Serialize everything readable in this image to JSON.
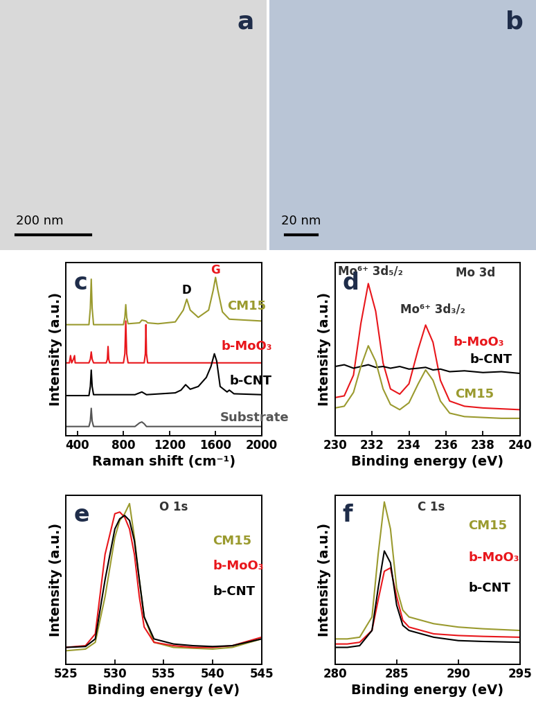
{
  "chart_data": [
    {
      "type": "image",
      "panel": "a",
      "scale_bar": "200 nm",
      "color": "#d9d9d9"
    },
    {
      "type": "image",
      "panel": "b",
      "scale_bar": "20 nm",
      "color": "#b9c5d6"
    },
    {
      "type": "line",
      "panel": "c",
      "x_label": "Raman shift (cm⁻¹)",
      "y_label": "Intensity (a.u.)",
      "xlim": [
        300,
        2000
      ],
      "xticks": [
        400,
        800,
        1200,
        1600,
        2000
      ],
      "ylim": [
        0.5,
        10
      ],
      "yticks": [],
      "tick_labels": "x",
      "series": [
        {
          "name": "CM15",
          "color": "#9a9a2e",
          "label_at": [
            1700,
            7.6
          ],
          "x": [
            300,
            500,
            512,
            520,
            528,
            540,
            800,
            812,
            820,
            828,
            840,
            940,
            960,
            995,
            1010,
            1100,
            1250,
            1320,
            1350,
            1380,
            1450,
            1540,
            1580,
            1600,
            1620,
            1660,
            1720,
            2000
          ],
          "values": [
            6.6,
            6.6,
            7.5,
            9.1,
            7.5,
            6.6,
            6.6,
            7.0,
            7.7,
            7.0,
            6.65,
            6.7,
            6.85,
            6.8,
            6.7,
            6.65,
            6.75,
            7.4,
            8.0,
            7.4,
            7.0,
            7.4,
            8.5,
            9.2,
            8.5,
            7.3,
            6.9,
            6.8
          ]
        },
        {
          "name": "b-MoO₃",
          "color": "#e8161b",
          "label_at": [
            1650,
            5.4
          ],
          "x": [
            300,
            330,
            340,
            350,
            365,
            375,
            380,
            500,
            512,
            520,
            528,
            540,
            650,
            660,
            666,
            672,
            680,
            800,
            812,
            820,
            828,
            840,
            980,
            990,
            995,
            1000,
            1010,
            2000
          ],
          "values": [
            4.5,
            4.5,
            4.9,
            4.5,
            4.7,
            4.9,
            4.5,
            4.5,
            4.7,
            5.1,
            4.7,
            4.5,
            4.5,
            4.7,
            5.4,
            4.7,
            4.5,
            4.5,
            5.0,
            6.8,
            5.0,
            4.5,
            4.5,
            5.0,
            6.6,
            5.0,
            4.5,
            4.5
          ]
        },
        {
          "name": "b-CNT",
          "color": "#000000",
          "label_at": [
            1720,
            3.5
          ],
          "x": [
            300,
            500,
            512,
            520,
            528,
            540,
            900,
            960,
            1000,
            1250,
            1300,
            1340,
            1380,
            1450,
            1520,
            1560,
            1590,
            1610,
            1640,
            1700,
            1720,
            1760,
            2000
          ],
          "values": [
            2.7,
            2.7,
            3.2,
            4.1,
            3.2,
            2.75,
            2.75,
            2.9,
            2.75,
            2.85,
            3.0,
            3.3,
            3.05,
            3.2,
            3.7,
            4.3,
            5.0,
            4.6,
            3.2,
            2.9,
            3.0,
            2.8,
            2.75
          ]
        },
        {
          "name": "Substrate",
          "color": "#555555",
          "label_at": [
            1640,
            1.5
          ],
          "x": [
            300,
            500,
            512,
            520,
            528,
            540,
            900,
            940,
            960,
            980,
            1000,
            2000
          ],
          "values": [
            1.0,
            1.0,
            1.3,
            2.0,
            1.3,
            1.0,
            1.0,
            1.2,
            1.25,
            1.15,
            1.0,
            1.0
          ]
        }
      ],
      "annotations": [
        {
          "text": "D",
          "x": 1350,
          "y": 8.5,
          "color": "#000000"
        },
        {
          "text": "G",
          "x": 1600,
          "y": 9.6,
          "color": "#e8161b"
        }
      ]
    },
    {
      "type": "line",
      "panel": "d",
      "x_label": "Binding energy (eV)",
      "y_label": "Intensity (a.u.)",
      "xlim": [
        230,
        240
      ],
      "xticks": [
        230,
        232,
        234,
        236,
        238,
        240
      ],
      "ylim": [
        0,
        10
      ],
      "yticks": [],
      "tick_labels": "x",
      "series": [
        {
          "name": "b-MoO₃",
          "color": "#e8161b",
          "label_at": [
            236.4,
            5.4
          ],
          "x": [
            230,
            230.5,
            231,
            231.4,
            231.8,
            232.2,
            232.6,
            233,
            233.5,
            234,
            234.5,
            234.9,
            235.3,
            235.7,
            236.2,
            237,
            238,
            239,
            240
          ],
          "values": [
            2.2,
            2.3,
            3.5,
            6.5,
            8.8,
            7.2,
            4.2,
            2.7,
            2.4,
            3.0,
            5.0,
            6.4,
            5.4,
            3.2,
            2.0,
            1.7,
            1.6,
            1.55,
            1.5
          ]
        },
        {
          "name": "b-CNT",
          "color": "#000000",
          "label_at": [
            237.3,
            4.4
          ],
          "x": [
            230,
            230.5,
            231,
            231.4,
            231.8,
            232.2,
            232.6,
            233,
            233.5,
            234,
            234.5,
            234.9,
            235.3,
            235.7,
            236.2,
            237,
            238,
            239,
            240
          ],
          "values": [
            4.0,
            4.1,
            3.9,
            4.0,
            4.1,
            3.95,
            4.0,
            3.9,
            4.0,
            3.85,
            3.9,
            3.95,
            3.8,
            3.85,
            3.7,
            3.75,
            3.65,
            3.7,
            3.6
          ]
        },
        {
          "name": "CM15",
          "color": "#9a9a2e",
          "label_at": [
            236.5,
            2.4
          ],
          "x": [
            230,
            230.5,
            231,
            231.4,
            231.8,
            232.2,
            232.6,
            233,
            233.5,
            234,
            234.5,
            234.9,
            235.3,
            235.7,
            236.2,
            237,
            238,
            239,
            240
          ],
          "values": [
            1.6,
            1.7,
            2.5,
            4.0,
            5.2,
            4.3,
            2.7,
            1.8,
            1.5,
            1.9,
            3.0,
            3.8,
            3.2,
            2.0,
            1.3,
            1.1,
            1.05,
            1.0,
            1.0
          ]
        }
      ],
      "annotations": [
        {
          "text": "Mo⁶⁺ 3d₅/₂",
          "x": 231.9,
          "y": 9.5,
          "color": "#333333"
        },
        {
          "text": "Mo⁶⁺ 3d₃/₂",
          "x": 235.3,
          "y": 7.3,
          "color": "#333333"
        },
        {
          "text": "Mo 3d",
          "x": 237.6,
          "y": 9.4,
          "color": "#333333"
        }
      ]
    },
    {
      "type": "line",
      "panel": "e",
      "x_label": "Binding energy (eV)",
      "y_label": "Intensity (a.u.)",
      "xlim": [
        525,
        545
      ],
      "xticks": [
        525,
        530,
        535,
        540,
        545
      ],
      "ylim": [
        0,
        10
      ],
      "yticks": [],
      "tick_labels": "x",
      "series": [
        {
          "name": "CM15",
          "color": "#9a9a2e",
          "label_at": [
            540,
            7.3
          ],
          "x": [
            525,
            527,
            528,
            529,
            530,
            530.5,
            531,
            531.5,
            532,
            532.5,
            533,
            534,
            536,
            538,
            540,
            542,
            545
          ],
          "values": [
            0.8,
            0.9,
            1.3,
            4.0,
            7.5,
            8.5,
            8.9,
            9.5,
            7.5,
            5.0,
            2.8,
            1.3,
            1.0,
            0.95,
            0.9,
            1.0,
            1.5
          ]
        },
        {
          "name": "b-MoO₃",
          "color": "#e8161b",
          "label_at": [
            540,
            5.8
          ],
          "x": [
            525,
            527,
            528,
            529,
            530,
            530.5,
            531,
            531.5,
            532,
            532.5,
            533,
            534,
            536,
            538,
            540,
            542,
            545
          ],
          "values": [
            1.0,
            1.1,
            1.8,
            6.5,
            8.9,
            9.0,
            8.7,
            8.0,
            6.5,
            4.0,
            2.2,
            1.3,
            1.1,
            1.0,
            1.0,
            1.1,
            1.6
          ]
        },
        {
          "name": "b-CNT",
          "color": "#000000",
          "label_at": [
            540,
            4.3
          ],
          "x": [
            525,
            527,
            528,
            529,
            530,
            530.5,
            531,
            531.5,
            532,
            532.5,
            533,
            534,
            536,
            538,
            540,
            542,
            545
          ],
          "values": [
            1.0,
            1.05,
            1.5,
            5.0,
            8.0,
            8.6,
            8.8,
            8.5,
            7.3,
            5.0,
            2.8,
            1.5,
            1.2,
            1.1,
            1.05,
            1.1,
            1.5
          ]
        }
      ],
      "annotations": [
        {
          "text": "O 1s",
          "x": 536,
          "y": 9.3,
          "color": "#333333"
        }
      ]
    },
    {
      "type": "line",
      "panel": "f",
      "x_label": "Binding energy (eV)",
      "y_label": "Intensity (a.u.)",
      "xlim": [
        280,
        295
      ],
      "xticks": [
        280,
        285,
        290,
        295
      ],
      "ylim": [
        0,
        10
      ],
      "yticks": [],
      "tick_labels": "x",
      "series": [
        {
          "name": "CM15",
          "color": "#9a9a2e",
          "label_at": [
            290.8,
            8.2
          ],
          "x": [
            280,
            281,
            282,
            283,
            283.5,
            284,
            284.5,
            285,
            285.5,
            286,
            287,
            288,
            290,
            292,
            295
          ],
          "values": [
            1.5,
            1.5,
            1.6,
            2.8,
            6.5,
            9.6,
            8.0,
            4.5,
            3.2,
            2.8,
            2.6,
            2.4,
            2.2,
            2.1,
            2.0
          ]
        },
        {
          "name": "b-MoO₃",
          "color": "#e8161b",
          "label_at": [
            290.8,
            6.3
          ],
          "x": [
            280,
            281,
            282,
            283,
            283.5,
            284,
            284.5,
            285,
            285.5,
            286,
            287,
            288,
            290,
            292,
            295
          ],
          "values": [
            1.2,
            1.2,
            1.3,
            2.0,
            3.8,
            5.5,
            5.7,
            4.0,
            2.6,
            2.2,
            2.0,
            1.8,
            1.7,
            1.65,
            1.6
          ]
        },
        {
          "name": "b-CNT",
          "color": "#000000",
          "label_at": [
            290.8,
            4.5
          ],
          "x": [
            280,
            281,
            282,
            283,
            283.5,
            284,
            284.5,
            285,
            285.5,
            286,
            287,
            288,
            290,
            292,
            295
          ],
          "values": [
            1.0,
            1.0,
            1.1,
            2.0,
            4.5,
            6.7,
            6.0,
            3.5,
            2.3,
            2.0,
            1.8,
            1.6,
            1.4,
            1.35,
            1.3
          ]
        }
      ],
      "annotations": [
        {
          "text": "C 1s",
          "x": 287.8,
          "y": 9.3,
          "color": "#333333"
        }
      ]
    }
  ]
}
